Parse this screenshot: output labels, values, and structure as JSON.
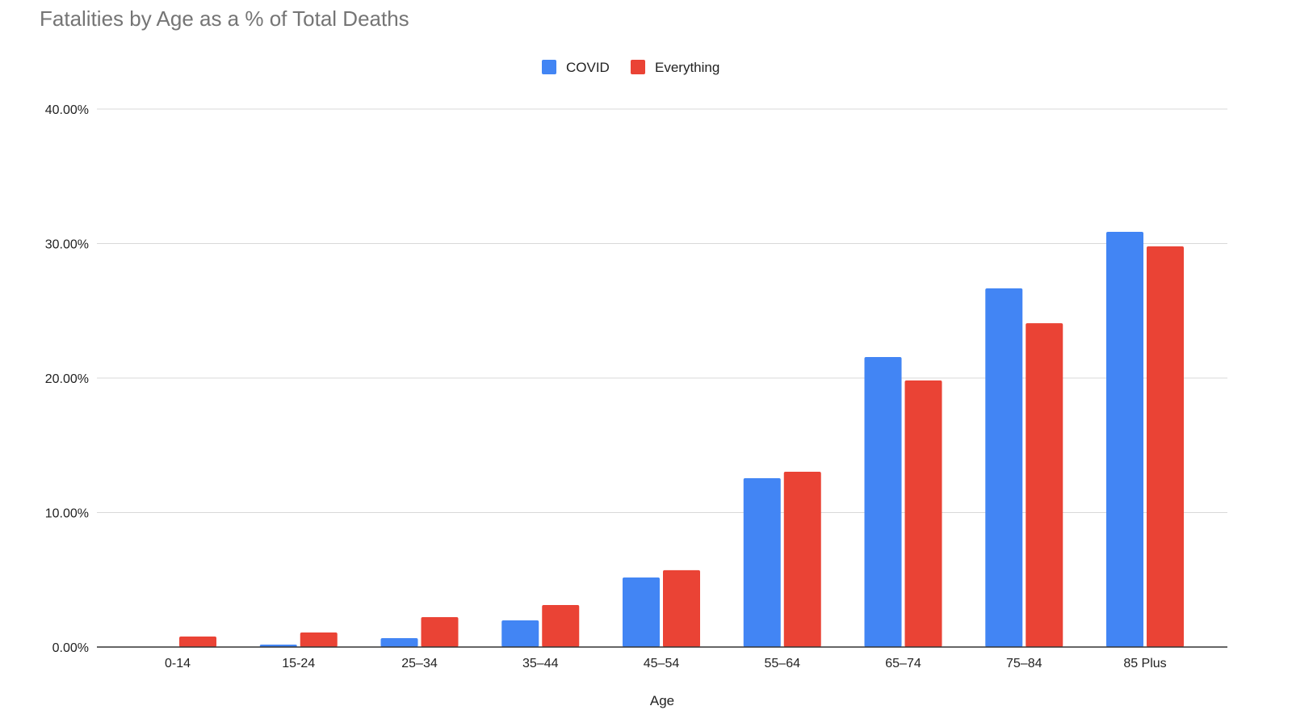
{
  "chart_data": {
    "type": "bar",
    "title": "Fatalities by Age as a % of Total Deaths",
    "xlabel": "Age",
    "ylabel": "",
    "categories": [
      "0-14",
      "15-24",
      "25–34",
      "35–44",
      "45–54",
      "55–64",
      "65–74",
      "75–84",
      "85 Plus"
    ],
    "series": [
      {
        "name": "COVID",
        "color": "#4285f4",
        "values": [
          0.0,
          0.18,
          0.66,
          1.98,
          5.17,
          12.55,
          21.56,
          26.67,
          30.87
        ]
      },
      {
        "name": "Everything",
        "color": "#ea4335",
        "values": [
          0.78,
          1.08,
          2.22,
          3.12,
          5.71,
          13.03,
          19.82,
          24.08,
          29.79
        ]
      }
    ],
    "ylim": [
      0,
      40
    ],
    "yticks": [
      "0.00%",
      "10.00%",
      "20.00%",
      "30.00%",
      "40.00%"
    ],
    "grid": true,
    "legend_position": "top"
  }
}
